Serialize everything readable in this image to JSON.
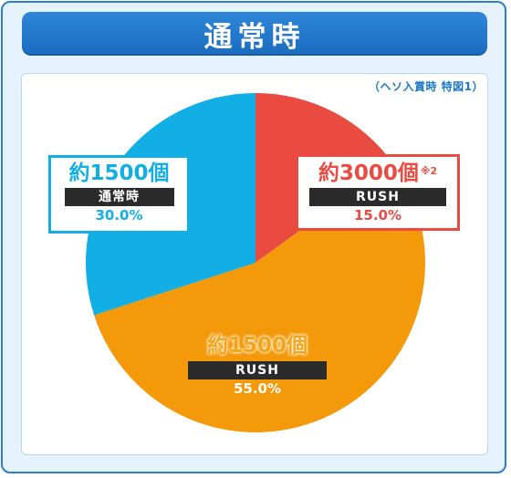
{
  "title": "通常時",
  "note": "（ヘソ入賞時 特図1）",
  "colors": {
    "frame": "#2a7fd0",
    "rush3000": "#e94b40",
    "rush1500": "#f49a0a",
    "normal1500": "#12aee6"
  },
  "chart_data": {
    "type": "pie",
    "title": "通常時",
    "start": "12 o'clock, clockwise",
    "slices": [
      {
        "amount": "約3000個",
        "footnote": "※2",
        "mode": "RUSH",
        "value": 15.0,
        "percent_label": "15.0%",
        "color": "#e94b40"
      },
      {
        "amount": "約1500個",
        "footnote": "",
        "mode": "RUSH",
        "value": 55.0,
        "percent_label": "55.0%",
        "color": "#f49a0a"
      },
      {
        "amount": "約1500個",
        "footnote": "",
        "mode": "通常時",
        "value": 30.0,
        "percent_label": "30.0%",
        "color": "#12aee6"
      }
    ]
  }
}
